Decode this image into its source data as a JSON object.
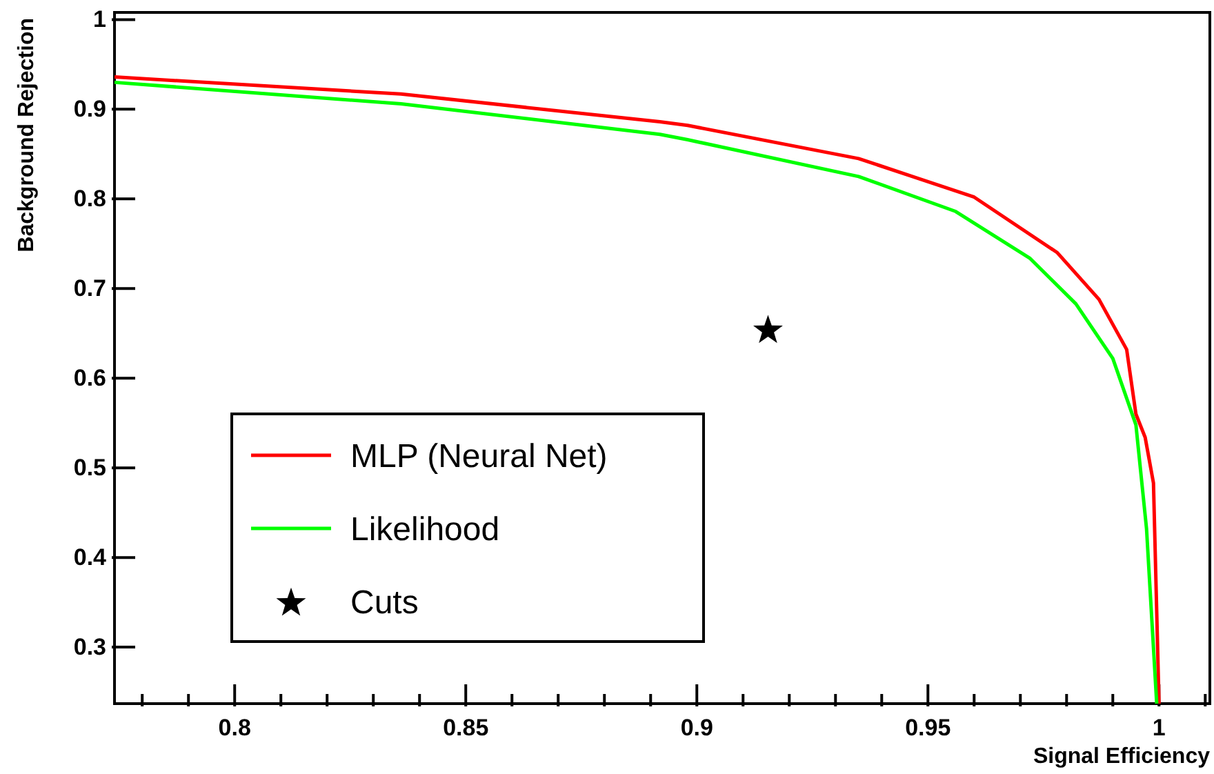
{
  "chart_data": {
    "type": "line",
    "xlabel": "Signal Efficiency",
    "ylabel": "Background Rejection",
    "xlim": [
      0.774,
      1.011
    ],
    "ylim": [
      0.237,
      1.008
    ],
    "xticks": [
      {
        "value": 0.78,
        "label": null
      },
      {
        "value": 0.79,
        "label": null
      },
      0.8,
      {
        "value": 0.81,
        "label": null
      },
      {
        "value": 0.82,
        "label": null
      },
      {
        "value": 0.83,
        "label": null
      },
      {
        "value": 0.84,
        "label": null
      },
      0.85,
      {
        "value": 0.86,
        "label": null
      },
      {
        "value": 0.87,
        "label": null
      },
      {
        "value": 0.88,
        "label": null
      },
      {
        "value": 0.89,
        "label": null
      },
      0.9,
      {
        "value": 0.91,
        "label": null
      },
      {
        "value": 0.92,
        "label": null
      },
      {
        "value": 0.93,
        "label": null
      },
      {
        "value": 0.94,
        "label": null
      },
      0.95,
      {
        "value": 0.96,
        "label": null
      },
      {
        "value": 0.97,
        "label": null
      },
      {
        "value": 0.98,
        "label": null
      },
      {
        "value": 0.99,
        "label": null
      },
      1,
      {
        "value": 1.01,
        "label": null
      }
    ],
    "yticks": [
      0.3,
      0.4,
      0.5,
      0.6,
      0.7,
      0.8,
      0.9,
      1
    ],
    "grid": false,
    "legend": "bottom left",
    "line_style": "solid",
    "marker": "none",
    "series": [
      {
        "name": "MLP (Neural Net)",
        "color": "#ff0000",
        "x": [
          0.774,
          0.836,
          0.892,
          0.898,
          0.935,
          0.96,
          0.978,
          0.987,
          0.993,
          0.995,
          0.997,
          0.9988,
          1.0
        ],
        "values": [
          0.936,
          0.917,
          0.886,
          0.882,
          0.845,
          0.802,
          0.74,
          0.688,
          0.632,
          0.56,
          0.534,
          0.483,
          0.237
        ]
      },
      {
        "name": "Likelihood",
        "color": "#00ff00",
        "x": [
          0.774,
          0.836,
          0.892,
          0.898,
          0.935,
          0.956,
          0.972,
          0.982,
          0.99,
          0.995,
          0.9973,
          0.9995
        ],
        "values": [
          0.93,
          0.906,
          0.872,
          0.866,
          0.825,
          0.786,
          0.734,
          0.683,
          0.622,
          0.548,
          0.432,
          0.237
        ]
      },
      {
        "name": "Cuts",
        "type": "scatter",
        "color": "#000000",
        "marker": "star",
        "x": [
          0.9154
        ],
        "values": [
          0.655
        ]
      }
    ]
  }
}
